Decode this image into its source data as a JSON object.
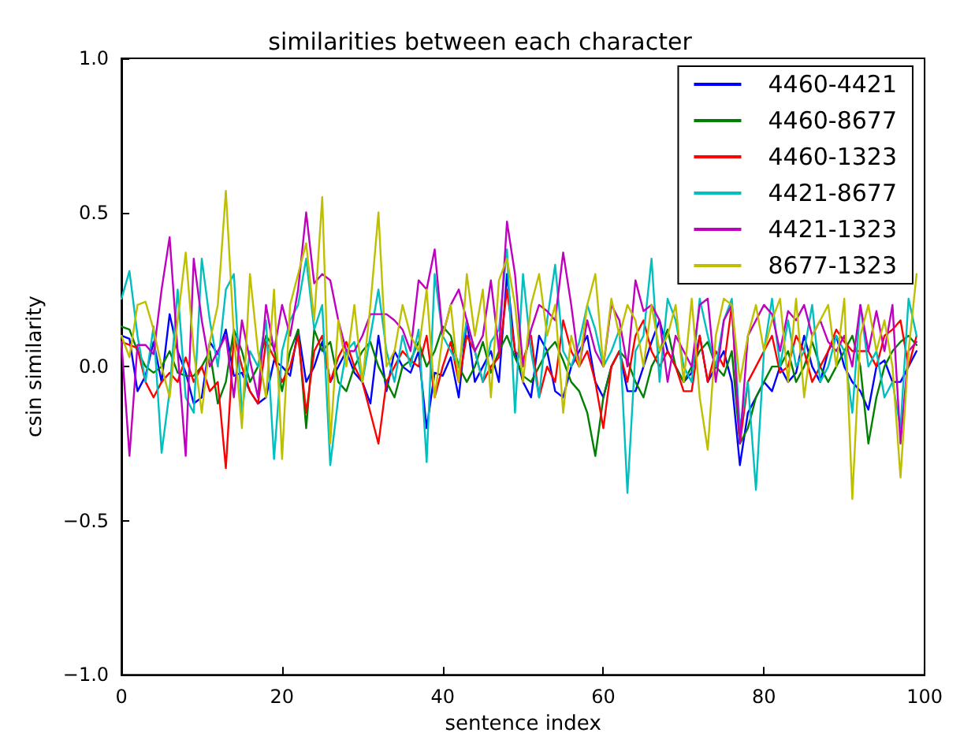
{
  "chart_data": {
    "type": "line",
    "title": "similarities between each character",
    "xlabel": "sentence index",
    "ylabel": "csin similarity",
    "x": [
      0,
      1,
      2,
      3,
      4,
      5,
      6,
      7,
      8,
      9,
      10,
      11,
      12,
      13,
      14,
      15,
      16,
      17,
      18,
      19,
      20,
      21,
      22,
      23,
      24,
      25,
      26,
      27,
      28,
      29,
      30,
      31,
      32,
      33,
      34,
      35,
      36,
      37,
      38,
      39,
      40,
      41,
      42,
      43,
      44,
      45,
      46,
      47,
      48,
      49,
      50,
      51,
      52,
      53,
      54,
      55,
      56,
      57,
      58,
      59,
      60,
      61,
      62,
      63,
      64,
      65,
      66,
      67,
      68,
      69,
      70,
      71,
      72,
      73,
      74,
      75,
      76,
      77,
      78,
      79,
      80,
      81,
      82,
      83,
      84,
      85,
      86,
      87,
      88,
      89,
      90,
      91,
      92,
      93,
      94,
      95,
      96,
      97,
      98,
      99
    ],
    "series": [
      {
        "name": "4460-4421",
        "color": "#0000ff",
        "values": [
          0.1,
          0.09,
          -0.08,
          -0.03,
          0.08,
          -0.05,
          0.17,
          0.05,
          -0.02,
          -0.12,
          -0.1,
          0.08,
          0.04,
          0.12,
          -0.03,
          -0.02,
          -0.08,
          -0.12,
          -0.1,
          0.02,
          0.0,
          -0.03,
          0.12,
          -0.05,
          0.0,
          0.08,
          -0.05,
          0.0,
          0.05,
          -0.02,
          -0.05,
          -0.12,
          0.1,
          -0.08,
          0.05,
          0.0,
          -0.02,
          0.05,
          -0.2,
          -0.02,
          -0.03,
          0.03,
          -0.1,
          0.15,
          -0.05,
          0.0,
          0.05,
          -0.05,
          0.3,
          0.05,
          -0.05,
          -0.1,
          0.1,
          0.05,
          -0.08,
          -0.1,
          0.0,
          0.05,
          0.1,
          -0.05,
          -0.1,
          0.0,
          0.05,
          -0.08,
          -0.08,
          0.0,
          0.08,
          0.15,
          0.05,
          0.0,
          -0.05,
          -0.02,
          0.1,
          -0.05,
          0.0,
          0.05,
          -0.05,
          -0.32,
          -0.15,
          -0.1,
          -0.05,
          -0.08,
          0.0,
          -0.05,
          -0.02,
          0.1,
          0.0,
          -0.05,
          0.05,
          0.1,
          0.0,
          -0.05,
          -0.08,
          -0.14,
          0.0,
          0.02,
          -0.05,
          -0.05,
          0.0,
          0.05
        ]
      },
      {
        "name": "4460-8677",
        "color": "#008000",
        "values": [
          0.13,
          0.12,
          0.05,
          0.0,
          -0.02,
          0.0,
          0.05,
          -0.02,
          -0.03,
          -0.03,
          0.0,
          0.05,
          -0.12,
          -0.05,
          0.12,
          0.05,
          -0.05,
          0.0,
          0.1,
          0.06,
          -0.08,
          0.05,
          0.12,
          -0.2,
          0.12,
          0.05,
          0.08,
          -0.05,
          -0.08,
          0.0,
          0.05,
          0.08,
          0.0,
          -0.05,
          -0.1,
          0.0,
          0.02,
          0.08,
          0.0,
          0.05,
          0.13,
          0.1,
          0.0,
          -0.05,
          0.0,
          0.08,
          -0.02,
          0.05,
          0.1,
          0.03,
          -0.03,
          -0.05,
          0.0,
          0.05,
          0.08,
          0.02,
          -0.05,
          -0.08,
          -0.15,
          -0.29,
          -0.1,
          0.0,
          0.05,
          0.02,
          -0.05,
          -0.1,
          0.0,
          0.05,
          0.12,
          0.0,
          -0.05,
          0.0,
          0.05,
          0.08,
          0.0,
          -0.03,
          0.05,
          -0.25,
          -0.2,
          -0.1,
          -0.05,
          0.0,
          0.0,
          0.05,
          -0.05,
          0.0,
          0.08,
          0.0,
          -0.05,
          0.0,
          0.05,
          0.1,
          0.0,
          -0.25,
          -0.1,
          0.0,
          0.05,
          0.08,
          0.1,
          0.07
        ]
      },
      {
        "name": "4460-1323",
        "color": "#ff0000",
        "values": [
          0.08,
          0.07,
          0.06,
          -0.05,
          -0.1,
          -0.05,
          -0.02,
          -0.05,
          0.03,
          -0.05,
          0.0,
          -0.08,
          -0.05,
          -0.33,
          0.1,
          0.0,
          -0.08,
          -0.12,
          0.08,
          0.03,
          -0.05,
          0.0,
          0.1,
          -0.15,
          0.05,
          0.1,
          -0.05,
          0.03,
          0.08,
          0.0,
          -0.05,
          -0.15,
          -0.25,
          -0.05,
          0.0,
          0.05,
          0.02,
          0.0,
          0.1,
          -0.1,
          0.0,
          0.08,
          -0.05,
          0.1,
          0.05,
          -0.05,
          0.0,
          0.03,
          0.25,
          0.05,
          0.02,
          0.1,
          -0.1,
          0.0,
          -0.05,
          0.15,
          0.05,
          0.0,
          0.05,
          -0.05,
          -0.2,
          0.0,
          0.05,
          -0.05,
          0.1,
          0.15,
          0.05,
          0.0,
          0.05,
          0.0,
          -0.08,
          -0.08,
          0.1,
          -0.05,
          0.05,
          0.0,
          0.2,
          -0.25,
          -0.05,
          0.0,
          0.05,
          0.1,
          -0.02,
          0.0,
          0.1,
          0.05,
          -0.05,
          0.0,
          0.05,
          0.12,
          0.08,
          0.05,
          0.05,
          0.05,
          0.0,
          0.1,
          0.12,
          0.15,
          0.0,
          0.1
        ]
      },
      {
        "name": "4421-8677",
        "color": "#00bfbf",
        "values": [
          0.22,
          0.31,
          0.1,
          -0.05,
          0.13,
          -0.28,
          -0.08,
          0.25,
          -0.1,
          -0.15,
          0.35,
          0.15,
          0.0,
          0.25,
          0.3,
          -0.15,
          0.05,
          0.0,
          0.15,
          -0.3,
          0.05,
          0.15,
          0.2,
          0.35,
          0.12,
          0.2,
          -0.32,
          -0.1,
          0.05,
          0.08,
          -0.05,
          0.1,
          0.25,
          0.05,
          -0.05,
          0.1,
          0.0,
          0.12,
          -0.31,
          0.3,
          0.1,
          0.05,
          0.0,
          0.15,
          0.05,
          -0.05,
          0.08,
          0.12,
          0.38,
          -0.15,
          0.3,
          0.05,
          -0.1,
          0.15,
          0.33,
          0.05,
          0.0,
          0.08,
          0.2,
          0.12,
          0.0,
          0.05,
          0.12,
          -0.41,
          0.05,
          0.1,
          0.35,
          -0.05,
          0.22,
          0.15,
          0.0,
          -0.05,
          0.22,
          0.1,
          0.0,
          0.15,
          0.22,
          -0.2,
          -0.05,
          -0.4,
          0.05,
          0.22,
          0.0,
          0.15,
          0.0,
          0.05,
          0.2,
          -0.05,
          0.0,
          0.1,
          0.05,
          -0.15,
          0.2,
          0.0,
          0.05,
          -0.1,
          -0.05,
          -0.2,
          0.22,
          0.1
        ]
      },
      {
        "name": "4421-1323",
        "color": "#bf00bf",
        "values": [
          0.08,
          -0.29,
          0.07,
          0.07,
          0.04,
          0.25,
          0.42,
          0.05,
          -0.29,
          0.35,
          0.15,
          0.0,
          0.05,
          0.1,
          -0.1,
          0.15,
          0.02,
          -0.1,
          0.2,
          0.05,
          0.2,
          0.1,
          0.25,
          0.5,
          0.27,
          0.3,
          0.28,
          0.15,
          0.05,
          0.05,
          0.1,
          0.17,
          0.17,
          0.17,
          0.15,
          0.12,
          0.05,
          0.28,
          0.25,
          0.38,
          0.1,
          0.2,
          0.25,
          0.15,
          0.05,
          0.1,
          0.28,
          0.05,
          0.47,
          0.3,
          0.0,
          0.12,
          0.2,
          0.18,
          0.15,
          0.37,
          0.2,
          0.0,
          0.15,
          0.05,
          0.0,
          0.2,
          0.15,
          0.0,
          0.28,
          0.18,
          0.2,
          0.15,
          -0.05,
          0.1,
          0.05,
          0.0,
          0.2,
          0.22,
          -0.05,
          0.15,
          0.2,
          -0.25,
          0.1,
          0.15,
          0.2,
          0.17,
          0.05,
          0.18,
          0.15,
          0.2,
          0.1,
          0.15,
          0.08,
          0.05,
          0.1,
          0.0,
          0.2,
          0.05,
          0.18,
          0.05,
          0.2,
          -0.25,
          0.05,
          0.08
        ]
      },
      {
        "name": "8677-1323",
        "color": "#bfbf00",
        "values": [
          0.1,
          0.03,
          0.2,
          0.21,
          0.12,
          0.0,
          -0.1,
          0.15,
          0.37,
          0.05,
          -0.15,
          0.08,
          0.2,
          0.57,
          0.1,
          -0.2,
          0.3,
          0.05,
          -0.1,
          0.25,
          -0.3,
          0.2,
          0.3,
          0.4,
          0.15,
          0.55,
          -0.25,
          0.15,
          0.0,
          0.2,
          -0.05,
          0.2,
          0.5,
          0.0,
          0.05,
          0.2,
          0.1,
          0.05,
          0.25,
          -0.1,
          0.1,
          0.2,
          -0.05,
          0.3,
          0.1,
          0.25,
          -0.1,
          0.28,
          0.35,
          0.2,
          -0.05,
          0.2,
          0.3,
          0.1,
          0.2,
          -0.15,
          0.1,
          0.0,
          0.2,
          0.3,
          0.0,
          0.22,
          0.1,
          0.2,
          0.15,
          0.0,
          0.2,
          0.05,
          0.1,
          0.2,
          -0.05,
          0.22,
          -0.1,
          -0.27,
          0.1,
          0.22,
          0.2,
          -0.05,
          0.1,
          0.2,
          0.05,
          0.15,
          0.22,
          -0.05,
          0.22,
          -0.1,
          0.1,
          0.15,
          0.2,
          0.0,
          0.22,
          -0.43,
          0.1,
          0.2,
          0.05,
          0.15,
          0.0,
          -0.36,
          0.05,
          0.3
        ]
      }
    ],
    "xlim": [
      0,
      100
    ],
    "xticks": [
      0,
      20,
      40,
      60,
      80,
      100
    ],
    "ylim": [
      -1,
      1
    ],
    "yticks": [
      {
        "value": -1,
        "label": "−1.0"
      },
      {
        "value": -0.5,
        "label": "−0.5"
      },
      {
        "value": 0,
        "label": "0.0"
      },
      {
        "value": 0.5,
        "label": "0.5"
      },
      {
        "value": 1,
        "label": "1.0"
      }
    ],
    "grid": false,
    "legend": "top right",
    "marker": "none",
    "line_style": "solid"
  }
}
